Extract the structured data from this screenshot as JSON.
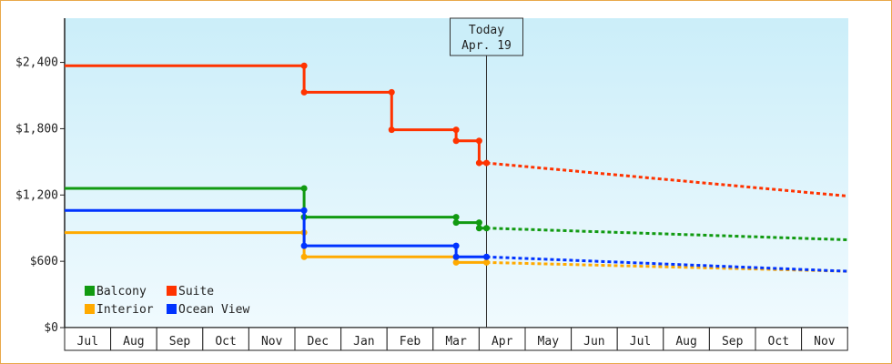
{
  "chart_data": {
    "type": "line",
    "title": "",
    "xlabel": "",
    "ylabel": "",
    "x_months": [
      "Jul",
      "Aug",
      "Sep",
      "Oct",
      "Nov",
      "Dec",
      "Jan",
      "Feb",
      "Mar",
      "Apr",
      "May",
      "Jun",
      "Jul",
      "Aug",
      "Sep",
      "Oct",
      "Nov"
    ],
    "xlim": [
      0,
      17
    ],
    "ylim": [
      0,
      2800
    ],
    "y_ticks": [
      0,
      600,
      1200,
      1800,
      2400
    ],
    "y_tick_labels": [
      "$0",
      "$600",
      "$1,200",
      "$1,800",
      "$2,400"
    ],
    "grid": false,
    "legend_position": "bottom-left",
    "today_marker": {
      "x": 9.16,
      "line1": "Today",
      "line2": "Apr. 19"
    },
    "series": [
      {
        "name": "Balcony",
        "color": "#119a11",
        "points": [
          [
            0,
            1260
          ],
          [
            5.2,
            1260
          ],
          [
            5.2,
            1000
          ],
          [
            8.5,
            1000
          ],
          [
            8.5,
            950
          ],
          [
            9.0,
            950
          ],
          [
            9.0,
            900
          ],
          [
            9.16,
            900
          ]
        ],
        "forecast": [
          [
            9.16,
            900
          ],
          [
            17,
            795
          ]
        ]
      },
      {
        "name": "Suite",
        "color": "#ff3300",
        "points": [
          [
            0,
            2370
          ],
          [
            5.2,
            2370
          ],
          [
            5.2,
            2130
          ],
          [
            7.1,
            2130
          ],
          [
            7.1,
            1790
          ],
          [
            8.5,
            1790
          ],
          [
            8.5,
            1690
          ],
          [
            9.0,
            1690
          ],
          [
            9.0,
            1490
          ],
          [
            9.16,
            1490
          ]
        ],
        "forecast": [
          [
            9.16,
            1490
          ],
          [
            17,
            1190
          ]
        ]
      },
      {
        "name": "Interior",
        "color": "#ffaa00",
        "points": [
          [
            0,
            860
          ],
          [
            5.2,
            860
          ],
          [
            5.2,
            640
          ],
          [
            8.5,
            640
          ],
          [
            8.5,
            590
          ],
          [
            9.16,
            590
          ]
        ],
        "forecast": [
          [
            9.16,
            590
          ],
          [
            17,
            510
          ]
        ]
      },
      {
        "name": "Ocean View",
        "color": "#0033ff",
        "points": [
          [
            0,
            1060
          ],
          [
            5.2,
            1060
          ],
          [
            5.2,
            740
          ],
          [
            8.5,
            740
          ],
          [
            8.5,
            640
          ],
          [
            9.16,
            640
          ]
        ],
        "forecast": [
          [
            9.16,
            640
          ],
          [
            17,
            510
          ]
        ]
      }
    ],
    "legend_order": [
      "Balcony",
      "Suite",
      "Interior",
      "Ocean View"
    ],
    "colors": {
      "background_top": "#cbeef9",
      "background_bottom": "#f0fafe",
      "border": "#e9a94a"
    }
  }
}
